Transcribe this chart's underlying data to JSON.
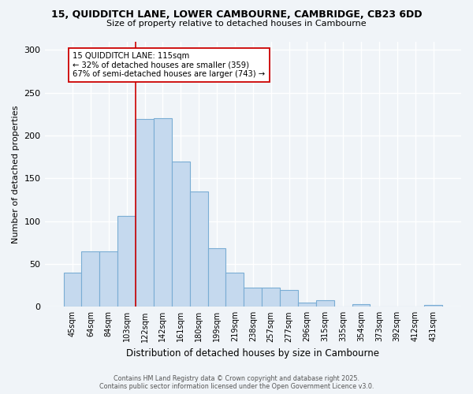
{
  "title_line1": "15, QUIDDITCH LANE, LOWER CAMBOURNE, CAMBRIDGE, CB23 6DD",
  "title_line2": "Size of property relative to detached houses in Cambourne",
  "xlabel": "Distribution of detached houses by size in Cambourne",
  "ylabel": "Number of detached properties",
  "categories": [
    "45sqm",
    "64sqm",
    "84sqm",
    "103sqm",
    "122sqm",
    "142sqm",
    "161sqm",
    "180sqm",
    "199sqm",
    "219sqm",
    "238sqm",
    "257sqm",
    "277sqm",
    "296sqm",
    "315sqm",
    "335sqm",
    "354sqm",
    "373sqm",
    "392sqm",
    "412sqm",
    "431sqm"
  ],
  "values": [
    40,
    65,
    65,
    106,
    219,
    220,
    170,
    135,
    68,
    40,
    22,
    22,
    20,
    5,
    8,
    0,
    3,
    0,
    0,
    0,
    2
  ],
  "bar_color": "#c5d9ee",
  "bar_edge_color": "#7aadd4",
  "vline_x_index": 3.5,
  "vline_color": "#cc0000",
  "annotation_title": "15 QUIDDITCH LANE: 115sqm",
  "annotation_line1": "← 32% of detached houses are smaller (359)",
  "annotation_line2": "67% of semi-detached houses are larger (743) →",
  "annotation_box_color": "white",
  "annotation_box_edge": "#cc0000",
  "ylim": [
    0,
    310
  ],
  "yticks": [
    0,
    50,
    100,
    150,
    200,
    250,
    300
  ],
  "footer_line1": "Contains HM Land Registry data © Crown copyright and database right 2025.",
  "footer_line2": "Contains public sector information licensed under the Open Government Licence v3.0.",
  "bg_color": "#f0f4f8",
  "grid_color": "#ffffff",
  "tick_color": "#333333"
}
